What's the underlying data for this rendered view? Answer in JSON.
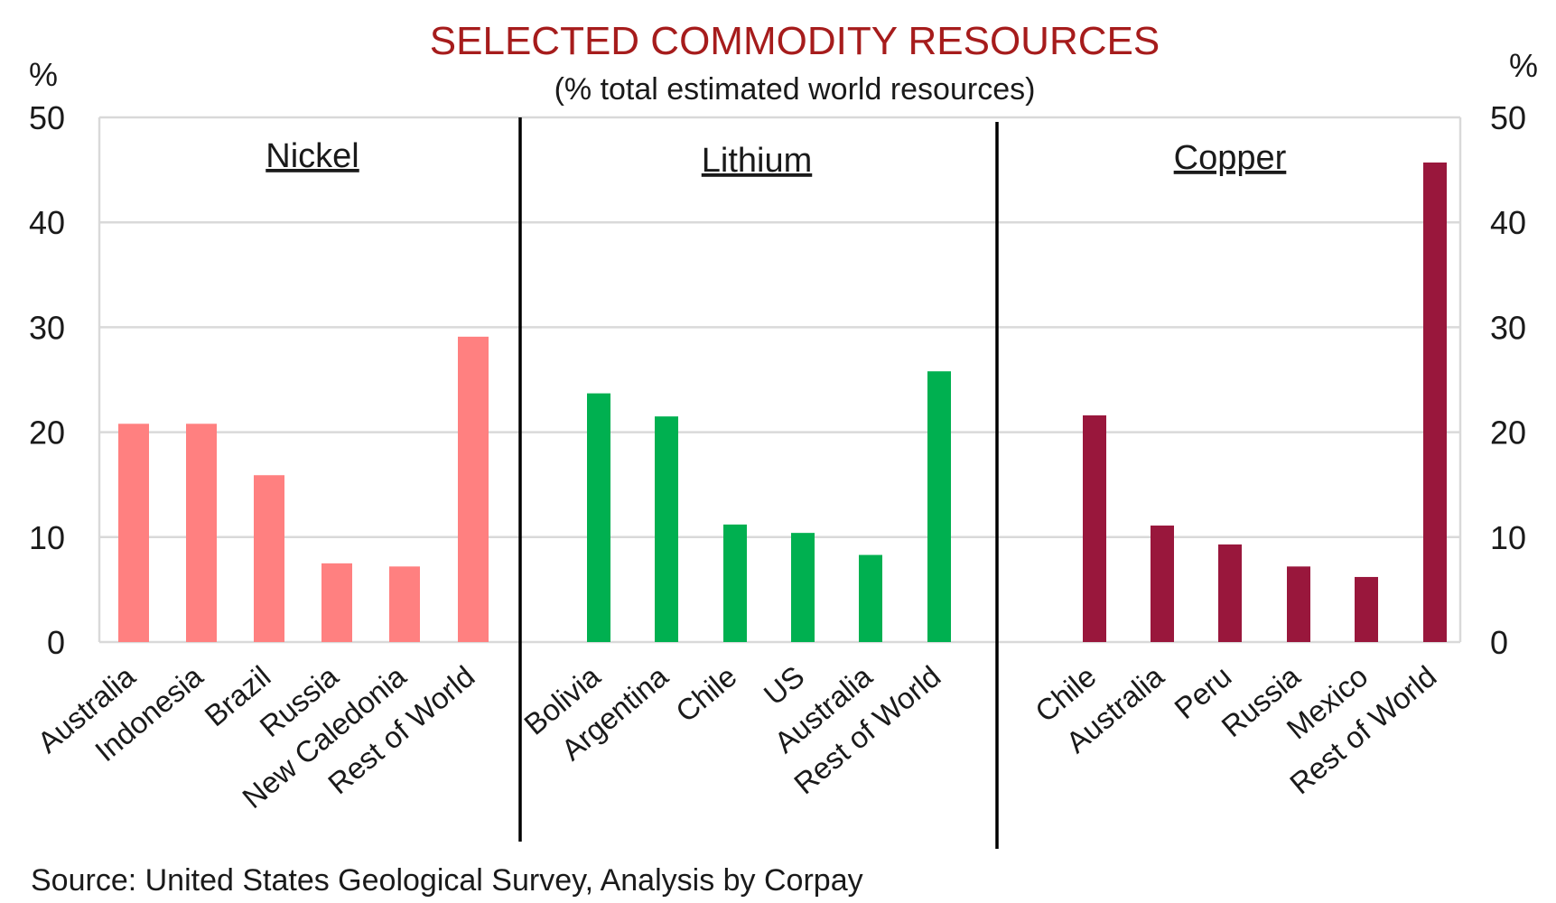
{
  "chart_data": {
    "type": "bar",
    "title": "SELECTED COMMODITY RESOURCES",
    "subtitle": "(% total estimated world resources)",
    "ylabel_left": "%",
    "ylabel_right": "%",
    "ylim": [
      0,
      50
    ],
    "yticks": [
      "0",
      "10",
      "20",
      "30",
      "40",
      "50"
    ],
    "grid": true,
    "source": "Source: United States Geological Survey, Analysis by Corpay",
    "panels": [
      {
        "name": "Nickel",
        "color": "#FF8080",
        "categories": [
          "Australia",
          "Indonesia",
          "Brazil",
          "Russia",
          "New Caledonia",
          "Rest of World"
        ],
        "values": [
          20.8,
          20.8,
          15.9,
          7.5,
          7.2,
          29.1
        ]
      },
      {
        "name": "Lithium",
        "color": "#00B050",
        "categories": [
          "Bolivia",
          "Argentina",
          "Chile",
          "US",
          "Australia",
          "Rest of World"
        ],
        "values": [
          23.7,
          21.5,
          11.2,
          10.4,
          8.3,
          25.8
        ]
      },
      {
        "name": "Copper",
        "color": "#99173C",
        "categories": [
          "Chile",
          "Australia",
          "Peru",
          "Russia",
          "Mexico",
          "Rest of World"
        ],
        "values": [
          21.6,
          11.1,
          9.3,
          7.2,
          6.2,
          45.7
        ]
      }
    ]
  },
  "colors": {
    "title": "#A61C1C",
    "text": "#1A1A1A",
    "grid": "#D9D9D9",
    "divider": "#000000"
  }
}
